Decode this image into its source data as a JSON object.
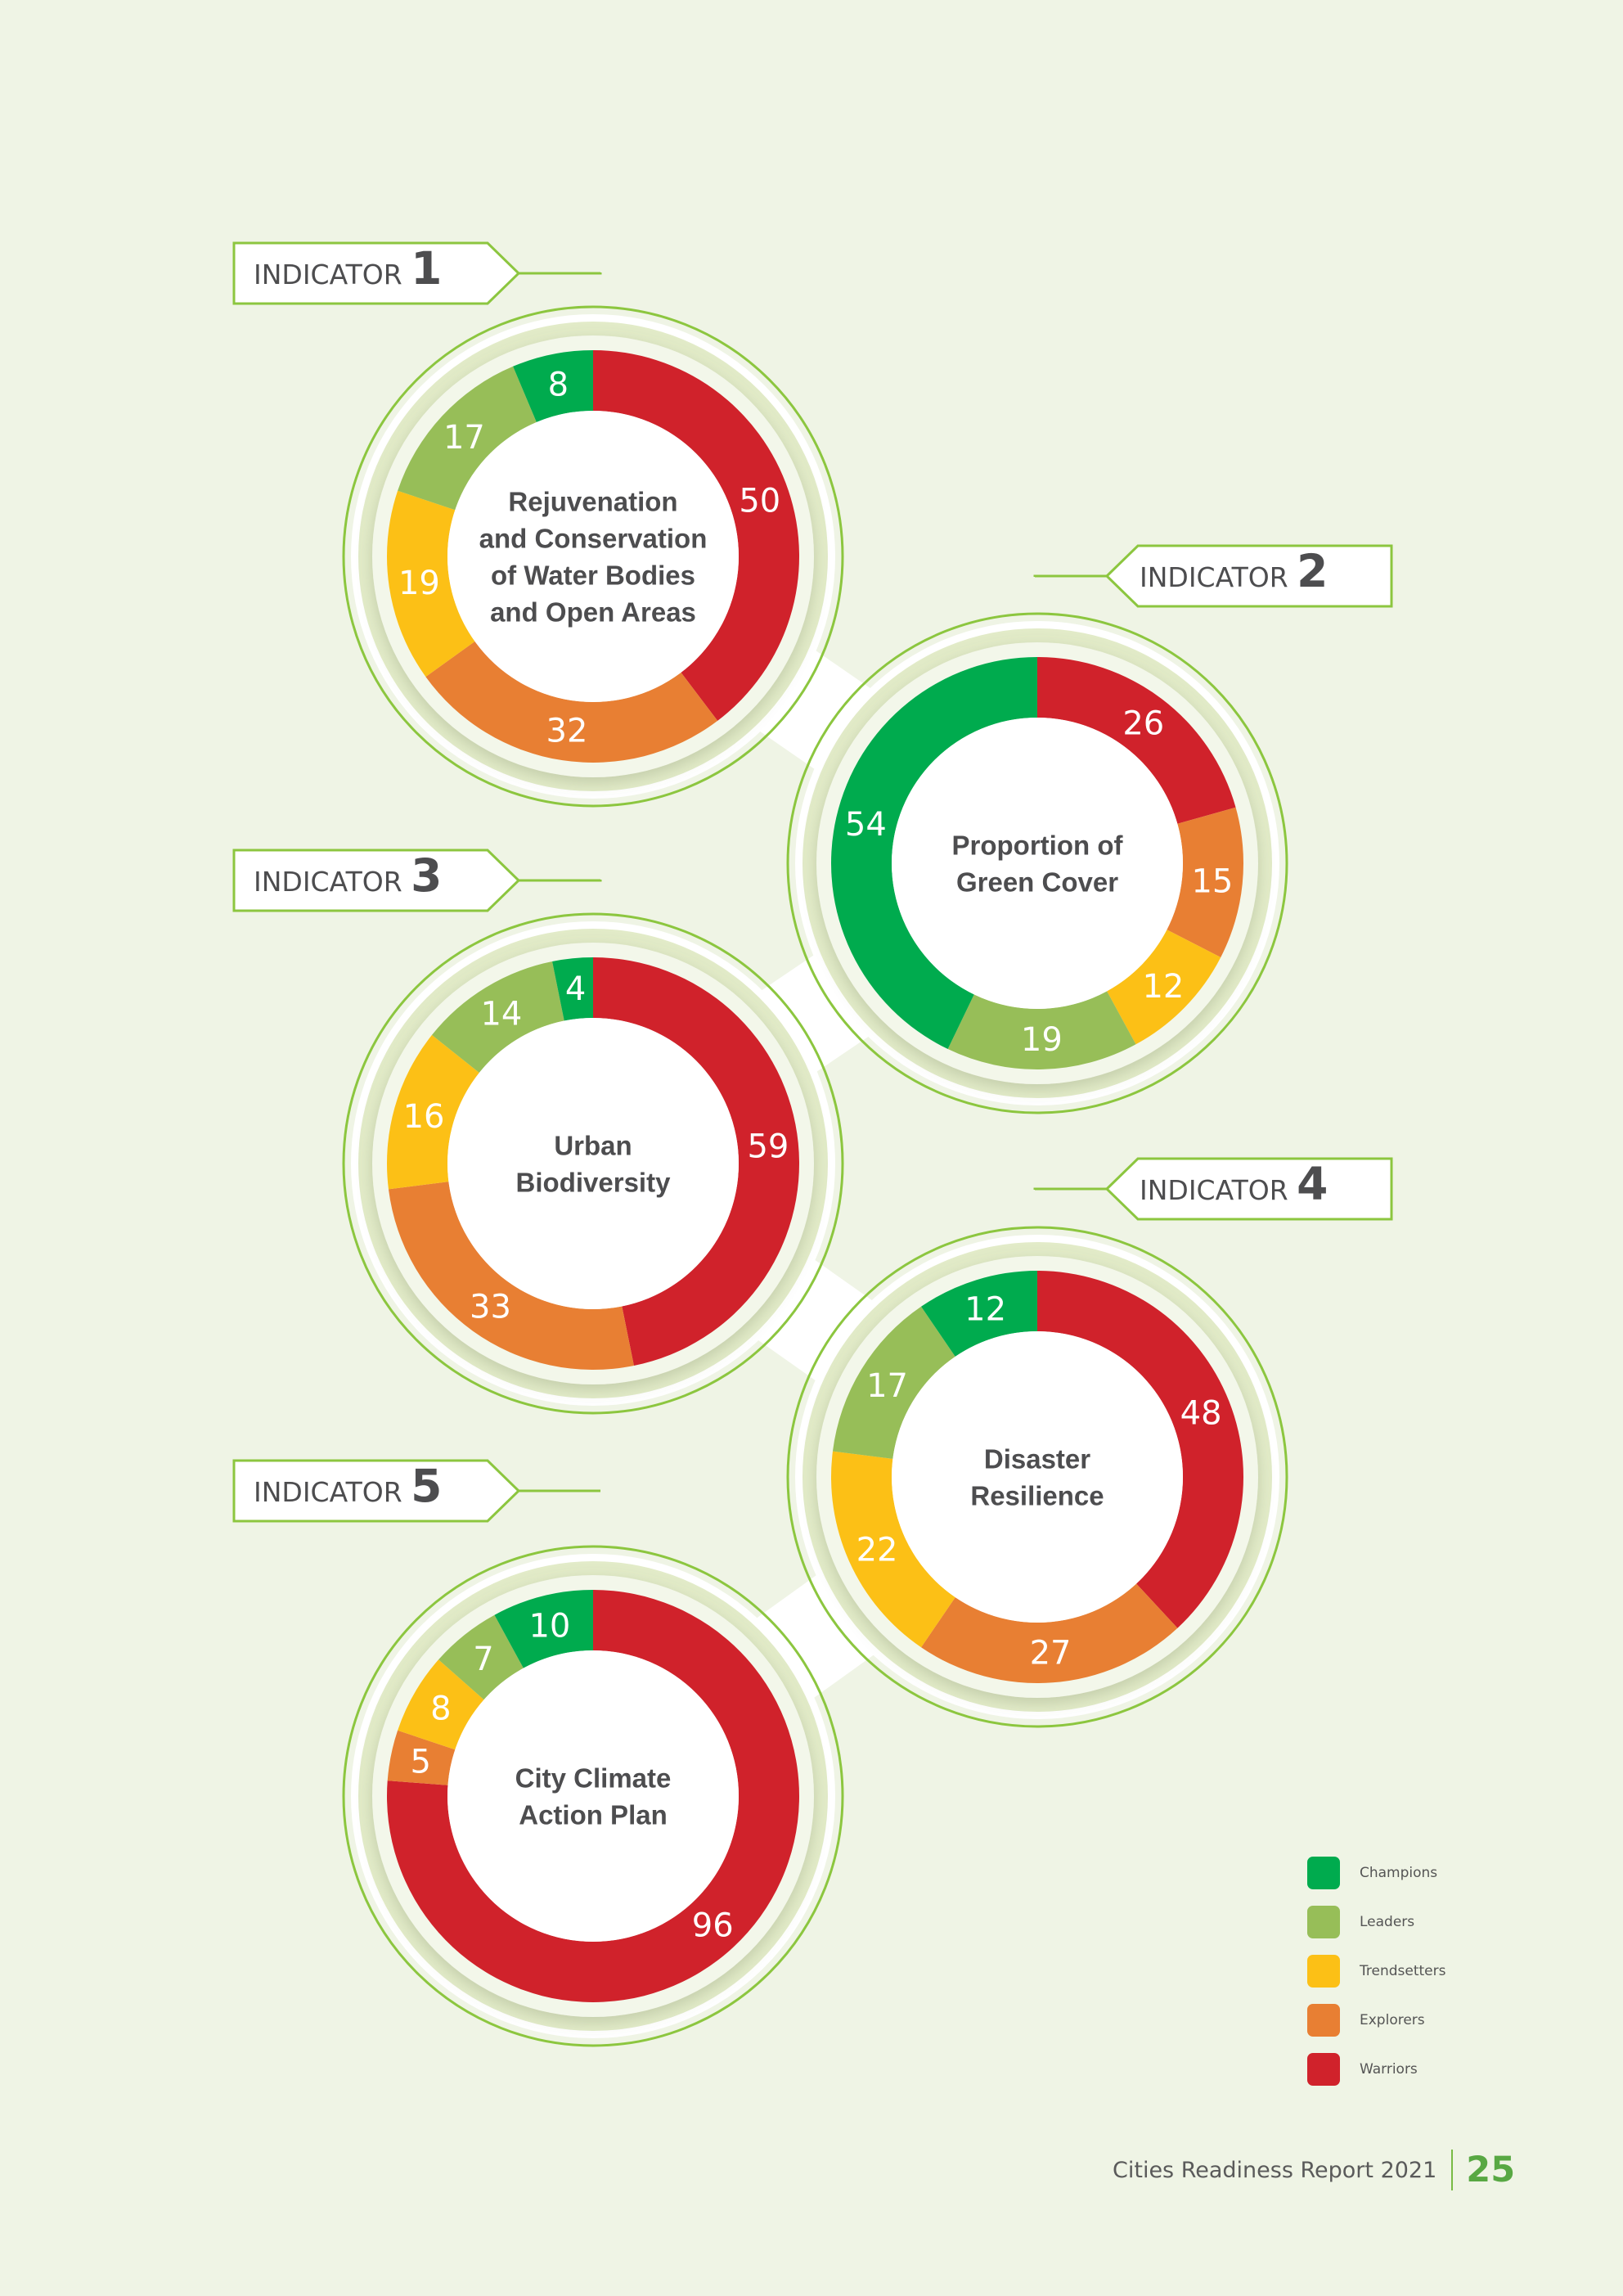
{
  "colors": {
    "Champions": "#00ab4e",
    "Leaders": "#97be58",
    "Trendsetters": "#fcc016",
    "Explorers": "#e87f33",
    "Warriors": "#d0222b"
  },
  "chart_data": {
    "type": "donut",
    "categories": [
      "Champions",
      "Leaders",
      "Trendsetters",
      "Explorers",
      "Warriors"
    ],
    "charts": [
      {
        "indicator_label": "INDICATOR",
        "indicator_number": "1",
        "title_lines": [
          "Rejuvenation",
          "and Conservation",
          "of Water Bodies",
          "and Open Areas"
        ],
        "values": [
          8,
          17,
          19,
          32,
          50
        ]
      },
      {
        "indicator_label": "INDICATOR",
        "indicator_number": "2",
        "title_lines": [
          "Proportion of",
          "Green Cover"
        ],
        "values": [
          54,
          19,
          12,
          15,
          26
        ]
      },
      {
        "indicator_label": "INDICATOR",
        "indicator_number": "3",
        "title_lines": [
          "Urban",
          "Biodiversity"
        ],
        "values": [
          4,
          14,
          16,
          33,
          59
        ]
      },
      {
        "indicator_label": "INDICATOR",
        "indicator_number": "4",
        "title_lines": [
          "Disaster",
          "Resilience"
        ],
        "values": [
          12,
          17,
          22,
          27,
          48
        ]
      },
      {
        "indicator_label": "INDICATOR",
        "indicator_number": "5",
        "title_lines": [
          "City Climate",
          "Action Plan"
        ],
        "values": [
          10,
          7,
          8,
          5,
          96
        ]
      }
    ],
    "legend": {
      "position": "bottom-right",
      "entries": [
        "Champions",
        "Leaders",
        "Trendsetters",
        "Explorers",
        "Warriors"
      ]
    }
  },
  "footer": {
    "report_title": "Cities Readiness Report 2021",
    "page_number": "25"
  }
}
